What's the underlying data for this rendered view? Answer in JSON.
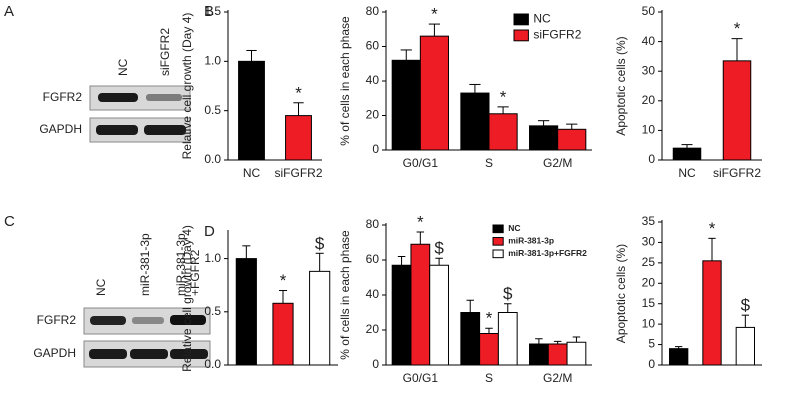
{
  "blots": [
    {
      "panel": "A",
      "lanes": [
        [
          "NC"
        ],
        [
          "siFGFR2"
        ]
      ],
      "rows": [
        "FGFR2",
        "GAPDH"
      ]
    },
    {
      "panel": "C",
      "lanes": [
        [
          "NC"
        ],
        [
          "miR-381-3p"
        ],
        [
          "miR-381-3p",
          "+FGFR2"
        ]
      ],
      "rows": [
        "FGFR2",
        "GAPDH"
      ]
    }
  ],
  "chart_data": [
    {
      "type": "bar",
      "panel": "B",
      "y_label": "Relative cell growth (Day 4)",
      "categories": [
        "NC",
        "siFGFR2"
      ],
      "values": [
        1.0,
        0.45
      ],
      "errors": [
        0.11,
        0.13
      ],
      "colors": [
        "#000000",
        "#ee1c24"
      ],
      "significance": [
        null,
        "*"
      ],
      "ylim": [
        0,
        1.5
      ],
      "yticks": [
        {
          "value": 0,
          "label": "0.0"
        },
        0.5,
        {
          "value": 1,
          "label": "1.0"
        },
        1.5
      ]
    },
    {
      "type": "grouped-bar",
      "y_label": "% of cells in each phase",
      "categories": [
        "G0/G1",
        "S",
        "G2/M"
      ],
      "series": [
        {
          "name": "NC",
          "color": "#000000",
          "values": [
            52,
            33,
            14
          ],
          "errors": [
            6,
            5,
            3
          ],
          "significance": [
            null,
            null,
            null
          ]
        },
        {
          "name": "siFGFR2",
          "color": "#ee1c24",
          "values": [
            66,
            21,
            12
          ],
          "errors": [
            7,
            4,
            3
          ],
          "significance": [
            "*",
            "*",
            null
          ]
        }
      ],
      "ylim": [
        0,
        80
      ],
      "yticks": [
        0,
        20,
        40,
        60,
        80
      ]
    },
    {
      "type": "bar",
      "y_label": "Apoptotic cells (%)",
      "categories": [
        "NC",
        "siFGFR2"
      ],
      "values": [
        4,
        33.5
      ],
      "errors": [
        1.2,
        7.5
      ],
      "colors": [
        "#000000",
        "#ee1c24"
      ],
      "significance": [
        null,
        "*"
      ],
      "ylim": [
        0,
        50
      ],
      "yticks": [
        0,
        10,
        20,
        30,
        40,
        50
      ]
    },
    {
      "type": "bar",
      "panel": "D",
      "y_label": "Relative cell growth (Day 4)",
      "categories": [
        null,
        null,
        null
      ],
      "values": [
        1.0,
        0.58,
        0.88
      ],
      "errors": [
        0.12,
        0.12,
        0.17
      ],
      "colors": [
        "#000000",
        "#ee1c24",
        "#ffffff"
      ],
      "significance": [
        null,
        "*",
        "$"
      ],
      "ylim": [
        0,
        1.25
      ],
      "yticks": [
        {
          "value": 0,
          "label": "0.0"
        },
        0.5,
        {
          "value": 1,
          "label": "1.0"
        }
      ]
    },
    {
      "type": "grouped-bar",
      "y_label": "% of cells in each phase",
      "categories": [
        "G0/G1",
        "S",
        "G2/M"
      ],
      "series": [
        {
          "name": "NC",
          "color": "#000000",
          "values": [
            57,
            30,
            12
          ],
          "errors": [
            5,
            7,
            3
          ],
          "significance": [
            null,
            null,
            null
          ]
        },
        {
          "name": "miR-381-3p",
          "color": "#ee1c24",
          "values": [
            69,
            18,
            12
          ],
          "errors": [
            7,
            3,
            1.5
          ],
          "significance": [
            "*",
            "*",
            null
          ]
        },
        {
          "name": "miR-381-3p+FGFR2",
          "color": "#ffffff",
          "values": [
            57,
            30,
            13
          ],
          "errors": [
            4,
            5,
            3
          ],
          "significance": [
            "$",
            "$",
            null
          ]
        }
      ],
      "ylim": [
        0,
        80
      ],
      "yticks": [
        0,
        20,
        40,
        60,
        80
      ]
    },
    {
      "type": "bar",
      "y_label": "Apoptotic cells (%)",
      "categories": [
        null,
        null,
        null
      ],
      "values": [
        4,
        25.5,
        9.2
      ],
      "errors": [
        0.5,
        5.5,
        3
      ],
      "colors": [
        "#000000",
        "#ee1c24",
        "#ffffff"
      ],
      "significance": [
        null,
        "*",
        "$"
      ],
      "ylim": [
        0,
        35
      ],
      "yticks": [
        0,
        5,
        10,
        15,
        20,
        25,
        30,
        35
      ]
    }
  ]
}
